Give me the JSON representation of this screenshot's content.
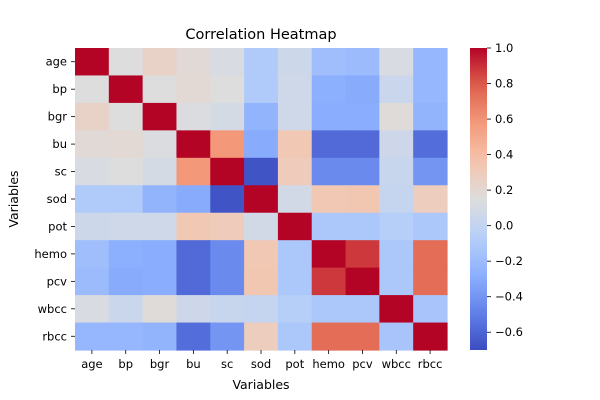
{
  "chart_data": {
    "type": "heatmap",
    "title": "Correlation Heatmap",
    "xlabel": "Variables",
    "ylabel": "Variables",
    "x_categories": [
      "age",
      "bp",
      "bgr",
      "bu",
      "sc",
      "sod",
      "pot",
      "hemo",
      "pcv",
      "wbcc",
      "rbcc"
    ],
    "y_categories": [
      "age",
      "bp",
      "bgr",
      "bu",
      "sc",
      "sod",
      "pot",
      "hemo",
      "pcv",
      "wbcc",
      "rbcc"
    ],
    "colormap": "coolwarm",
    "vmin": -0.7,
    "vmax": 1.0,
    "colorbar_ticks": [
      1.0,
      0.8,
      0.6,
      0.4,
      0.2,
      0.0,
      -0.2,
      -0.4,
      -0.6
    ],
    "colorbar_tick_labels": [
      "1.0",
      "0.8",
      "0.6",
      "0.4",
      "0.2",
      "0.0",
      "−0.2",
      "−0.4",
      "−0.6"
    ],
    "values": [
      [
        1.0,
        0.15,
        0.25,
        0.18,
        0.12,
        -0.1,
        0.05,
        -0.18,
        -0.2,
        0.12,
        -0.23
      ],
      [
        0.15,
        1.0,
        0.15,
        0.19,
        0.15,
        -0.1,
        0.07,
        -0.28,
        -0.3,
        0.04,
        -0.23
      ],
      [
        0.25,
        0.15,
        1.0,
        0.13,
        0.1,
        -0.25,
        0.07,
        -0.29,
        -0.29,
        0.17,
        -0.25
      ],
      [
        0.18,
        0.19,
        0.13,
        1.0,
        0.58,
        -0.3,
        0.33,
        -0.58,
        -0.58,
        0.06,
        -0.57
      ],
      [
        0.12,
        0.15,
        0.1,
        0.58,
        1.0,
        -0.67,
        0.3,
        -0.45,
        -0.45,
        0.03,
        -0.4
      ],
      [
        -0.1,
        -0.1,
        -0.25,
        -0.3,
        -0.67,
        1.0,
        0.08,
        0.33,
        0.34,
        0.01,
        0.29
      ],
      [
        0.05,
        0.07,
        0.07,
        0.33,
        0.3,
        0.08,
        1.0,
        -0.12,
        -0.12,
        -0.07,
        -0.12
      ],
      [
        -0.18,
        -0.28,
        -0.29,
        -0.58,
        -0.45,
        0.33,
        -0.12,
        1.0,
        0.88,
        -0.12,
        0.74
      ],
      [
        -0.2,
        -0.3,
        -0.29,
        -0.58,
        -0.45,
        0.34,
        -0.12,
        0.88,
        1.0,
        -0.12,
        0.74
      ],
      [
        0.12,
        0.04,
        0.17,
        0.06,
        0.03,
        0.01,
        -0.07,
        -0.12,
        -0.12,
        1.0,
        -0.14
      ],
      [
        -0.23,
        -0.23,
        -0.25,
        -0.57,
        -0.4,
        0.29,
        -0.12,
        0.74,
        0.74,
        -0.14,
        1.0
      ]
    ]
  }
}
